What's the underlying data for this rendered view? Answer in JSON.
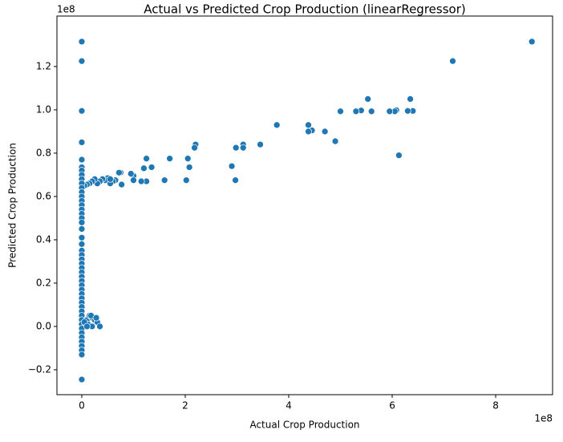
{
  "chart_data": {
    "type": "scatter",
    "title": "Actual vs Predicted Crop Production (linearRegressor)",
    "x_label": "Actual Crop Production",
    "y_label": "Predicted Crop Production",
    "x_offset_label": "1e8",
    "y_offset_label": "1e8",
    "color": "#1f77b4",
    "xlim": [
      -0.48,
      9.1
    ],
    "ylim": [
      -0.315,
      1.433
    ],
    "xticks": [
      0,
      2,
      4,
      6,
      8
    ],
    "yticks": [
      {
        "value": -0.2,
        "label": "−0.2"
      },
      {
        "value": 0,
        "label": "0.0"
      },
      0.2,
      0.4,
      0.6,
      0.8,
      {
        "value": 1,
        "label": "1.0"
      },
      1.2
    ],
    "x": [
      8.7,
      7.17,
      6.35,
      5.53,
      6.4,
      6.3,
      6.08,
      6.05,
      5.95,
      5.6,
      5.4,
      5.3,
      5.0,
      6.13,
      4.9,
      4.7,
      4.45,
      4.38,
      4.38,
      3.77,
      3.45,
      3.12,
      3.12,
      2.98,
      2.9,
      2.97,
      2.2,
      2.18,
      2.05,
      2.08,
      2.02,
      1.6,
      1.7,
      1.35,
      1.25,
      1.2,
      1.25,
      1.15,
      1.0,
      0.95,
      1.0,
      0.75,
      0.72,
      0.65,
      0.6,
      0.55,
      0.5,
      0.45,
      0.4,
      0.35,
      0.3,
      0.25,
      0.2,
      0.15,
      0.1,
      0.05,
      0.77,
      0.55,
      0,
      0,
      0,
      0,
      0,
      0,
      0,
      0,
      0,
      0,
      0,
      0,
      0,
      0,
      0,
      0,
      0,
      0,
      0,
      0,
      0,
      0,
      0,
      0,
      0,
      0,
      0,
      0,
      0,
      0,
      0,
      0,
      0,
      0,
      0,
      0,
      0,
      0,
      0,
      0,
      0,
      0,
      0,
      0,
      0,
      0,
      0,
      0,
      0.1,
      0.15,
      0.2,
      0.25,
      0.3,
      0.12,
      0.2,
      0.35,
      0.05,
      0.18,
      0.1,
      0.28
    ],
    "values": [
      1.315,
      1.225,
      1.05,
      1.05,
      0.995,
      0.995,
      0.998,
      0.993,
      0.993,
      0.993,
      0.997,
      0.993,
      0.993,
      0.79,
      0.855,
      0.9,
      0.905,
      0.93,
      0.9,
      0.93,
      0.84,
      0.84,
      0.825,
      0.825,
      0.74,
      0.675,
      0.84,
      0.825,
      0.775,
      0.735,
      0.675,
      0.675,
      0.775,
      0.735,
      0.775,
      0.73,
      0.67,
      0.67,
      0.695,
      0.705,
      0.675,
      0.71,
      0.71,
      0.675,
      0.67,
      0.66,
      0.685,
      0.675,
      0.68,
      0.67,
      0.66,
      0.68,
      0.67,
      0.66,
      0.655,
      0.65,
      0.655,
      0.68,
      1.315,
      1.225,
      0.995,
      0.85,
      0.77,
      0.735,
      0.72,
      0.7,
      0.68,
      0.66,
      0.64,
      0.62,
      0.6,
      0.58,
      0.56,
      0.54,
      0.52,
      0.5,
      0.48,
      0.45,
      0.41,
      0.38,
      0.35,
      0.33,
      0.31,
      0.29,
      0.27,
      0.25,
      0.23,
      0.21,
      0.19,
      0.17,
      0.15,
      0.13,
      0.11,
      0.09,
      0.07,
      0.05,
      0.03,
      0.01,
      -0.01,
      -0.03,
      -0.05,
      -0.07,
      -0.09,
      -0.11,
      -0.13,
      -0.245,
      0.03,
      0.05,
      0.04,
      0.03,
      0.02,
      0.01,
      0,
      0,
      0.02,
      0.05,
      0,
      0.04
    ]
  }
}
